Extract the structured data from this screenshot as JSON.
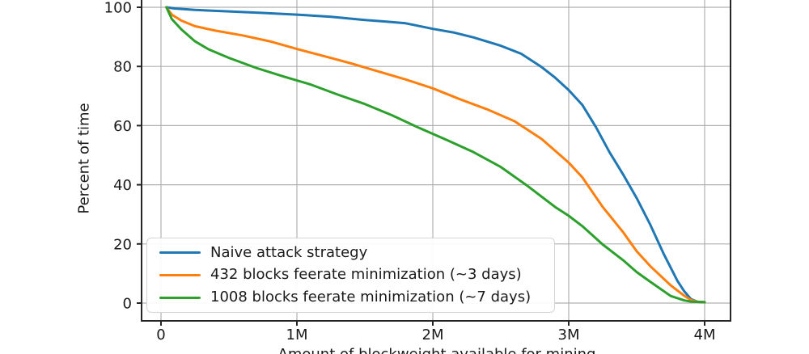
{
  "figure": {
    "background_color": "#ffffff",
    "axis_color": "#262626",
    "grid_color": "#b0b0b0",
    "text_color": "#1a1a1a"
  },
  "chart_data": {
    "type": "line",
    "title": "",
    "ylabel": "Percent of time",
    "xlabel": "Amount of blockweight available for mining",
    "xlabel_clipped_at_bottom": true,
    "grid": true,
    "legend_position": "lower left",
    "x_tick_labels": [
      "0",
      "1M",
      "2M",
      "3M",
      "4M"
    ],
    "x_tick_values": [
      0,
      1,
      2,
      3,
      4
    ],
    "y_tick_labels": [
      "0",
      "20",
      "40",
      "60",
      "80",
      "100"
    ],
    "y_tick_values": [
      0,
      20,
      40,
      60,
      80,
      100
    ],
    "xlim": [
      -0.14,
      4.19
    ],
    "ylim": [
      -6,
      108
    ],
    "series": [
      {
        "name": "Naive attack strategy",
        "color": "#1f77b4",
        "x": [
          0.04,
          0.1,
          0.25,
          0.5,
          0.75,
          1.0,
          1.25,
          1.5,
          1.65,
          1.8,
          2.0,
          2.15,
          2.3,
          2.5,
          2.65,
          2.8,
          2.9,
          3.0,
          3.1,
          3.2,
          3.3,
          3.4,
          3.5,
          3.6,
          3.7,
          3.8,
          3.85,
          3.9,
          3.95,
          4.0
        ],
        "y": [
          100,
          99.6,
          99.1,
          98.6,
          98.1,
          97.5,
          96.8,
          95.7,
          95.2,
          94.6,
          92.7,
          91.5,
          89.8,
          87.0,
          84.3,
          79.8,
          76.2,
          72.0,
          67.0,
          59.5,
          51.0,
          43.5,
          35.5,
          26.5,
          16.5,
          7.5,
          4.0,
          1.3,
          0.4,
          0.3
        ]
      },
      {
        "name": "432 blocks feerate minimization (~3 days)",
        "color": "#ff7f0e",
        "x": [
          0.04,
          0.08,
          0.15,
          0.25,
          0.4,
          0.6,
          0.8,
          1.0,
          1.2,
          1.4,
          1.6,
          1.8,
          2.0,
          2.2,
          2.4,
          2.6,
          2.8,
          2.9,
          3.0,
          3.1,
          3.25,
          3.4,
          3.5,
          3.6,
          3.75,
          3.85,
          3.9,
          3.95,
          4.0
        ],
        "y": [
          100,
          97.5,
          95.5,
          93.6,
          92.1,
          90.5,
          88.5,
          85.9,
          83.5,
          81.0,
          78.3,
          75.6,
          72.6,
          68.9,
          65.5,
          61.5,
          55.5,
          51.5,
          47.5,
          42.5,
          32.5,
          24.0,
          17.5,
          12.5,
          6.0,
          2.5,
          1.0,
          0.4,
          0.3
        ]
      },
      {
        "name": "1008 blocks feerate minimization (~7 days)",
        "color": "#2ca02c",
        "x": [
          0.04,
          0.08,
          0.15,
          0.25,
          0.35,
          0.5,
          0.7,
          0.9,
          1.1,
          1.3,
          1.5,
          1.7,
          1.9,
          2.1,
          2.3,
          2.5,
          2.7,
          2.9,
          3.0,
          3.1,
          3.25,
          3.4,
          3.5,
          3.6,
          3.75,
          3.85,
          3.9,
          3.95,
          4.0
        ],
        "y": [
          100,
          96.0,
          92.5,
          88.5,
          85.8,
          82.9,
          79.5,
          76.6,
          73.9,
          70.5,
          67.3,
          63.5,
          59.2,
          55.2,
          51.0,
          46.0,
          39.5,
          32.5,
          29.5,
          26.0,
          19.8,
          14.5,
          10.5,
          7.2,
          2.4,
          0.9,
          0.5,
          0.4,
          0.3
        ]
      }
    ]
  }
}
